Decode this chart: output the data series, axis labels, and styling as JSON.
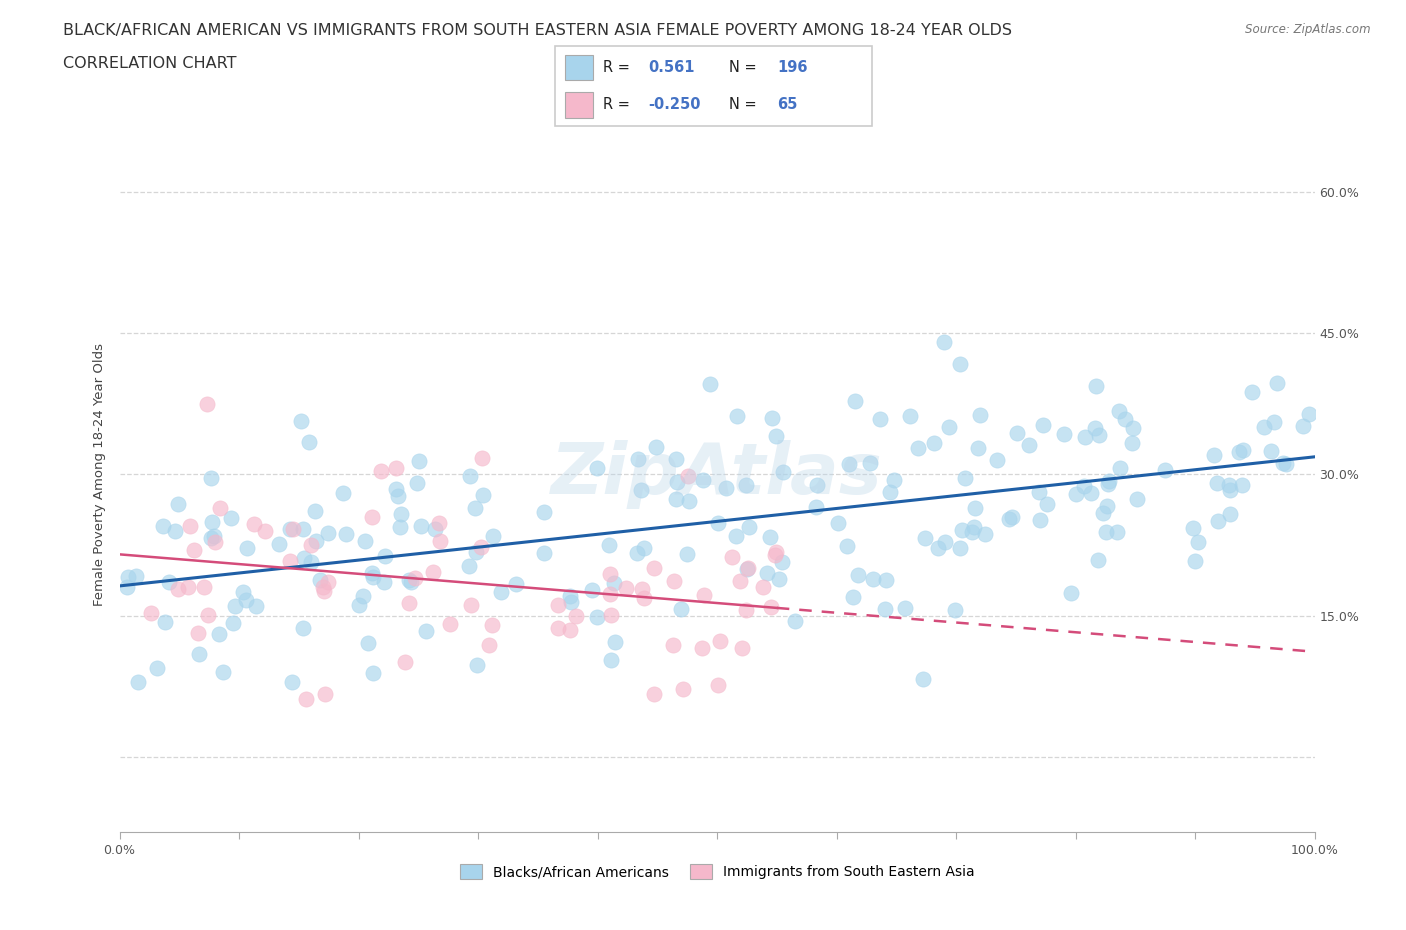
{
  "title_line1": "BLACK/AFRICAN AMERICAN VS IMMIGRANTS FROM SOUTH EASTERN ASIA FEMALE POVERTY AMONG 18-24 YEAR OLDS",
  "title_line2": "CORRELATION CHART",
  "source": "Source: ZipAtlas.com",
  "ylabel": "Female Poverty Among 18-24 Year Olds",
  "xlim": [
    0.0,
    1.0
  ],
  "ylim": [
    -0.08,
    0.68
  ],
  "xticks": [
    0.0,
    0.1,
    0.2,
    0.3,
    0.4,
    0.5,
    0.6,
    0.7,
    0.8,
    0.9,
    1.0
  ],
  "xticklabels": [
    "0.0%",
    "",
    "",
    "",
    "",
    "",
    "",
    "",
    "",
    "",
    "100.0%"
  ],
  "yticks": [
    0.0,
    0.15,
    0.3,
    0.45,
    0.6
  ],
  "yticklabels": [
    "",
    "15.0%",
    "30.0%",
    "45.0%",
    "60.0%"
  ],
  "blue_R": 0.561,
  "blue_N": 196,
  "pink_R": -0.25,
  "pink_N": 65,
  "blue_color": "#A8D4EC",
  "pink_color": "#F5B8CB",
  "blue_line_color": "#1F5FA6",
  "pink_line_color": "#D44C7A",
  "legend_value_color": "#4472C4",
  "legend_label_blue": "Blacks/African Americans",
  "legend_label_pink": "Immigrants from South Eastern Asia",
  "background_color": "#FFFFFF",
  "grid_color": "#CCCCCC",
  "title_fontsize": 11.5,
  "axis_label_fontsize": 9.5,
  "tick_fontsize": 9
}
